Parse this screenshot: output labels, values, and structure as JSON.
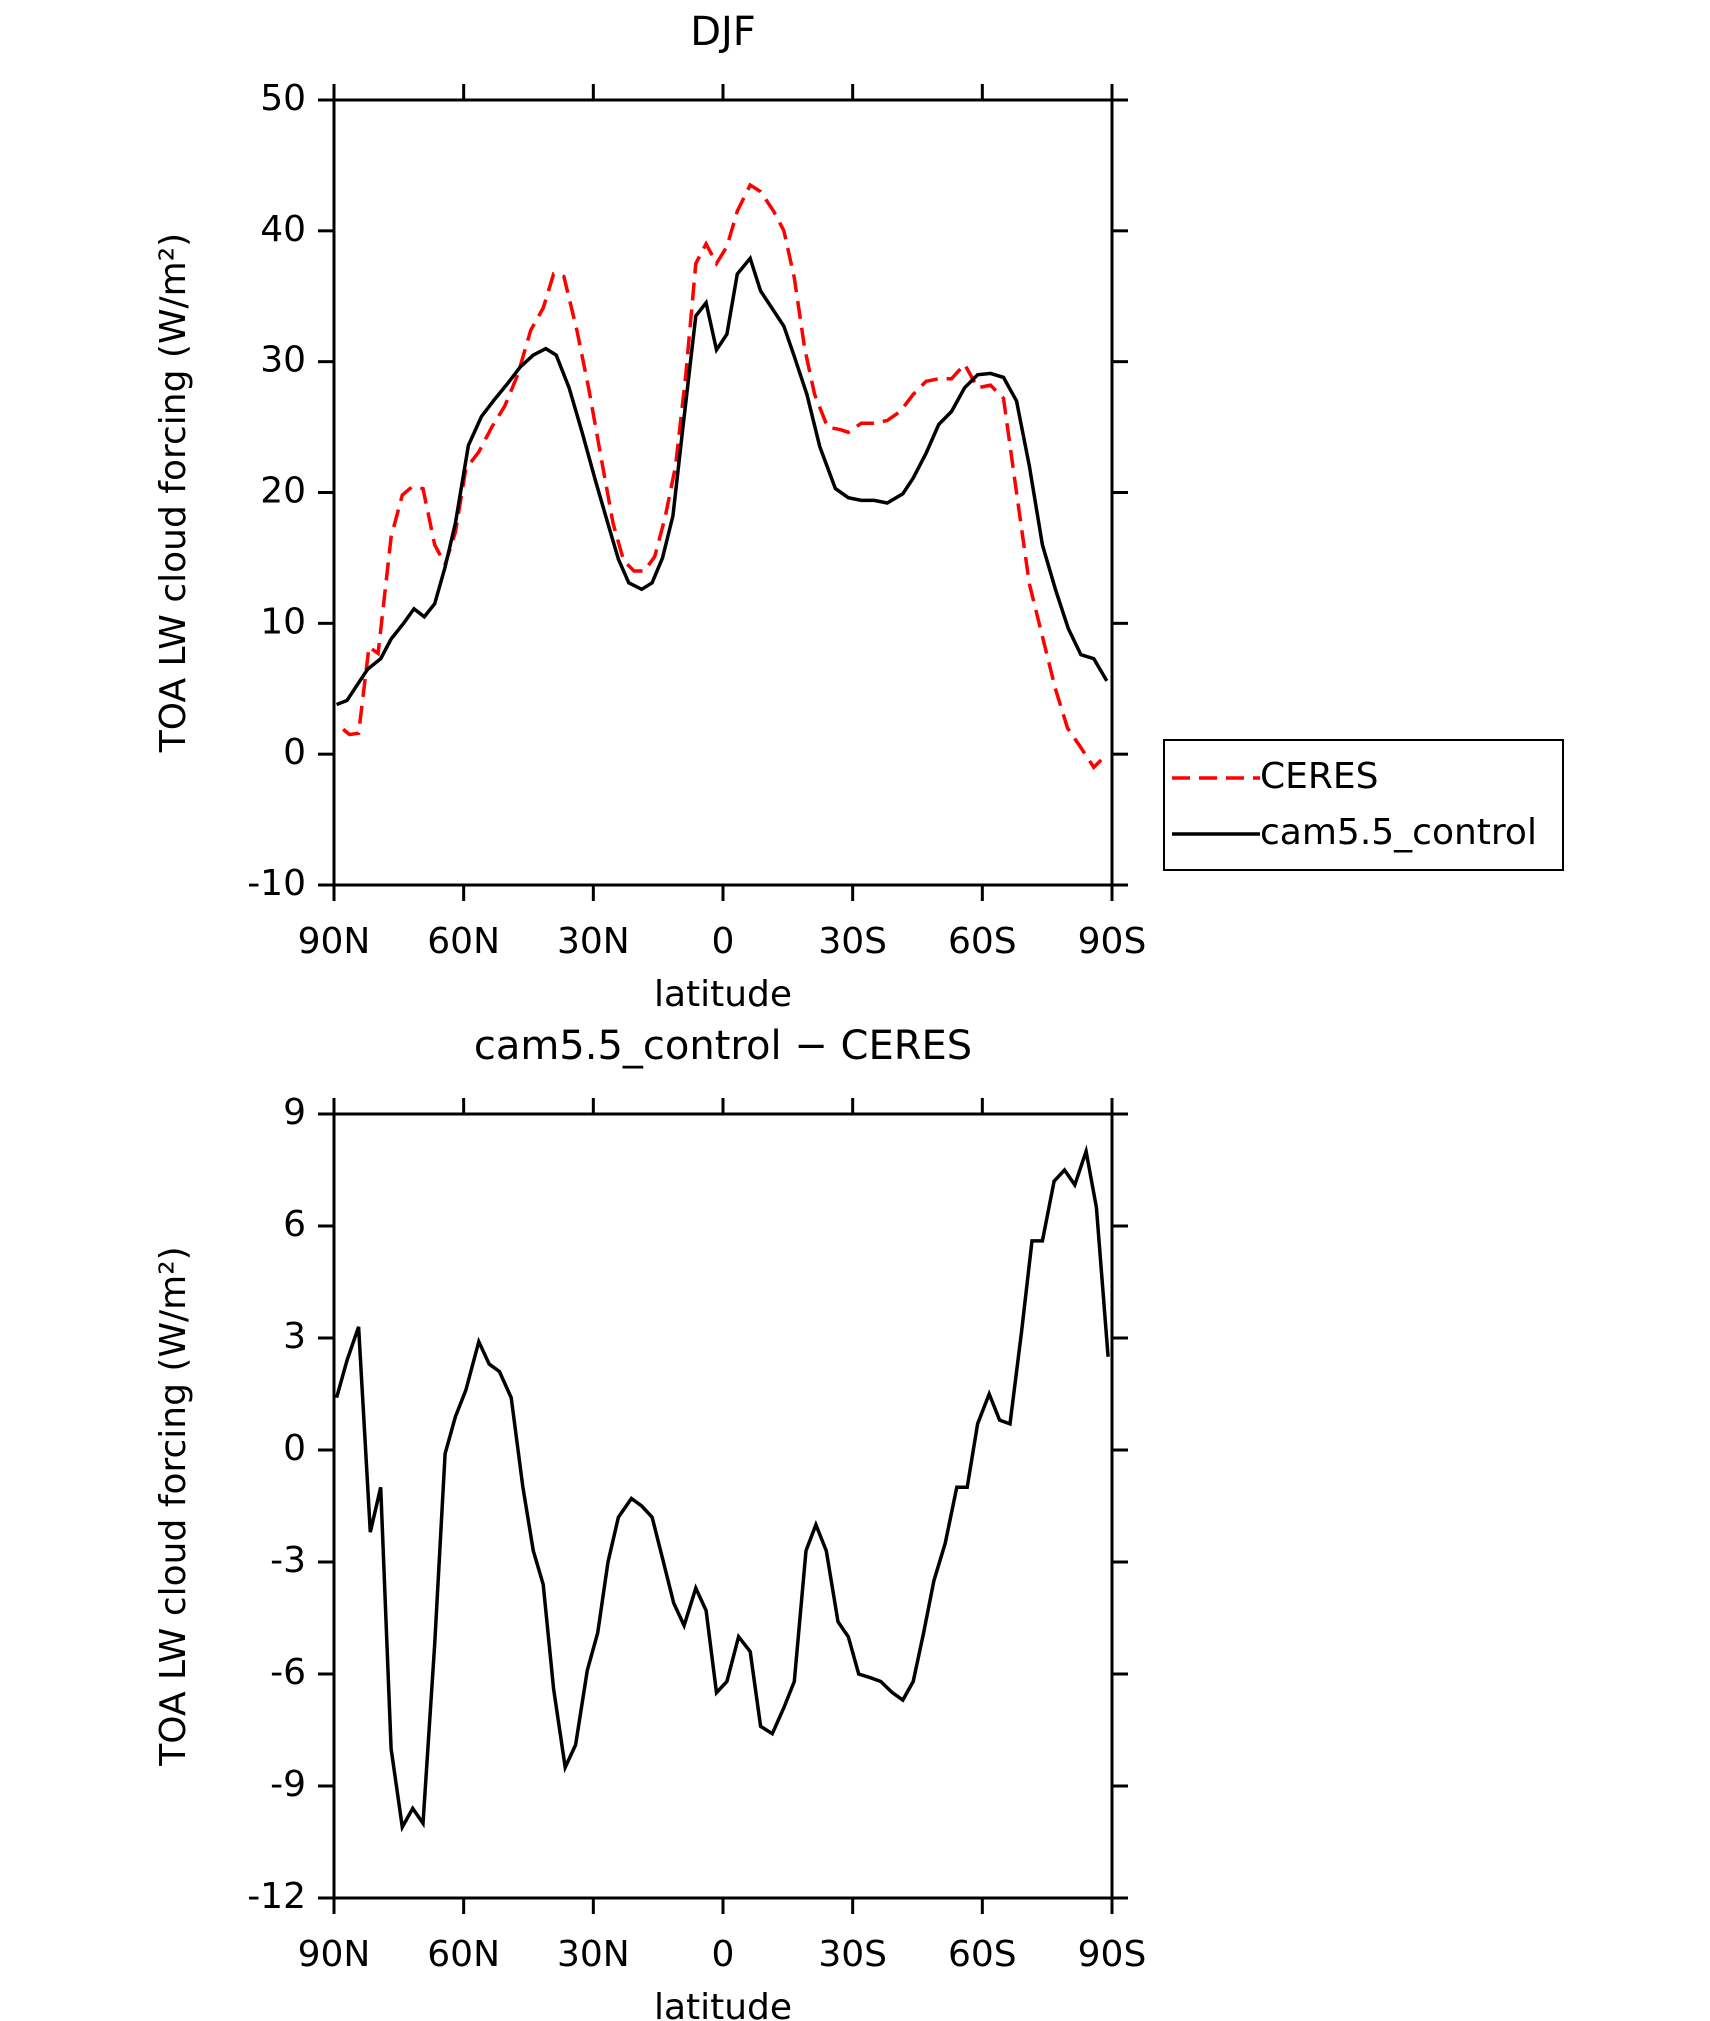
{
  "chart_data": [
    {
      "type": "line",
      "title": "DJF",
      "xlabel": "latitude",
      "ylabel": "TOA LW cloud forcing (W/m²)",
      "xlim": [
        90,
        -90
      ],
      "ylim": [
        -10,
        50
      ],
      "xticks": [
        {
          "value": 90,
          "label": "90N"
        },
        {
          "value": 60,
          "label": "60N"
        },
        {
          "value": 30,
          "label": "30N"
        },
        0,
        {
          "value": -30,
          "label": "30S"
        },
        {
          "value": -60,
          "label": "60S"
        },
        {
          "value": -90,
          "label": "90S"
        }
      ],
      "yticks": [
        50,
        40,
        30,
        20,
        10,
        0,
        -10
      ],
      "legend": "right",
      "series": [
        {
          "name": "CERES",
          "color": "#ff0000",
          "dash": true,
          "x": [
            87.9,
            86.4,
            84.3,
            81.9,
            79.8,
            76.8,
            74.2,
            72.1,
            69.4,
            66.7,
            64.3,
            61.9,
            59.5,
            56.5,
            53.5,
            50.5,
            47.5,
            44.5,
            41.6,
            39.2,
            36.8,
            33.8,
            31.1,
            28.1,
            25.4,
            23.0,
            20.6,
            18.2,
            15.8,
            13.4,
            11.0,
            8.6,
            6.3,
            3.9,
            1.5,
            -0.9,
            -3.3,
            -6.3,
            -8.7,
            -11.7,
            -14.1,
            -16.5,
            -18.9,
            -21.2,
            -24.2,
            -27.2,
            -29.0,
            -32.0,
            -35.0,
            -38.0,
            -41.0,
            -44.0,
            -47.0,
            -49.9,
            -52.9,
            -55.9,
            -58.9,
            -61.9,
            -64.9,
            -67.9,
            -70.9,
            -73.9,
            -76.9,
            -79.7,
            -82.8,
            -85.8,
            -88.8
          ],
          "values": [
            1.9,
            1.5,
            1.6,
            8.2,
            7.7,
            16.6,
            19.8,
            20.4,
            20.3,
            16,
            14.5,
            17,
            21.8,
            23.1,
            25,
            26.6,
            29,
            32.4,
            34.1,
            36.7,
            36.5,
            32.4,
            28,
            22.5,
            17.6,
            14.8,
            14,
            14,
            15.1,
            18.1,
            22,
            29,
            37.5,
            39,
            37.5,
            38.8,
            41.5,
            43.5,
            43,
            41.5,
            40,
            36.4,
            31,
            27.5,
            25,
            24.8,
            24.6,
            25.3,
            25.3,
            25.5,
            26.2,
            27.5,
            28.5,
            28.7,
            28.7,
            29.8,
            28,
            28.2,
            27.2,
            20,
            13,
            9,
            5,
            2,
            0.5,
            -1,
            0
          ]
        },
        {
          "name": "cam5.5_control",
          "color": "#000000",
          "dash": false,
          "x": [
            89.4,
            87.0,
            84.6,
            82.2,
            79.2,
            76.8,
            73.9,
            71.5,
            69.1,
            66.7,
            64.3,
            61.9,
            58.9,
            55.9,
            52.9,
            49.9,
            46.9,
            43.9,
            41.0,
            38.6,
            35.6,
            32.6,
            29.6,
            26.6,
            24.2,
            21.8,
            18.8,
            16.4,
            14.0,
            11.6,
            9.3,
            6.3,
            3.9,
            1.5,
            -0.9,
            -3.3,
            -6.3,
            -8.7,
            -11.7,
            -14.1,
            -16.5,
            -19.4,
            -22.4,
            -26.0,
            -29.0,
            -32.0,
            -35.0,
            -38.0,
            -41.6,
            -44.0,
            -47.0,
            -49.9,
            -52.9,
            -55.9,
            -58.9,
            -61.9,
            -64.9,
            -67.9,
            -70.9,
            -73.9,
            -76.9,
            -79.9,
            -82.8,
            -85.8,
            -88.8
          ],
          "values": [
            3.8,
            4.1,
            5.3,
            6.5,
            7.3,
            8.8,
            10,
            11.1,
            10.5,
            11.5,
            14.3,
            17.7,
            23.6,
            25.8,
            27.1,
            28.3,
            29.6,
            30.5,
            31,
            30.5,
            28,
            24.6,
            21,
            17.6,
            14.9,
            13.1,
            12.6,
            13.1,
            15,
            18.2,
            24.9,
            33.5,
            34.5,
            30.9,
            32.1,
            36.7,
            37.9,
            35.4,
            33.9,
            32.7,
            30.4,
            27.5,
            23.5,
            20.3,
            19.6,
            19.4,
            19.4,
            19.2,
            19.9,
            21.1,
            23,
            25.2,
            26.2,
            28,
            29,
            29.1,
            28.8,
            27,
            22,
            16,
            12.6,
            9.6,
            7.6,
            7.3,
            5.6
          ]
        }
      ]
    },
    {
      "type": "line",
      "title": "cam5.5_control − CERES",
      "xlabel": "latitude",
      "ylabel": "TOA LW cloud forcing (W/m²)",
      "xlim": [
        90,
        -90
      ],
      "ylim": [
        -12,
        9
      ],
      "xticks": [
        {
          "value": 90,
          "label": "90N"
        },
        {
          "value": 60,
          "label": "60N"
        },
        {
          "value": 30,
          "label": "30N"
        },
        0,
        {
          "value": -30,
          "label": "30S"
        },
        {
          "value": -60,
          "label": "60S"
        },
        {
          "value": -90,
          "label": "90S"
        }
      ],
      "yticks": [
        9,
        6,
        3,
        0,
        -3,
        -6,
        -9,
        -12
      ],
      "series": [
        {
          "color": "#000000",
          "dash": false,
          "x": [
            89.4,
            87.0,
            84.3,
            81.6,
            79.2,
            76.8,
            74.2,
            71.8,
            69.4,
            66.7,
            64.3,
            61.9,
            59.5,
            56.5,
            54.1,
            51.7,
            49.0,
            46.3,
            43.9,
            41.6,
            39.2,
            36.5,
            34.1,
            31.4,
            29.0,
            26.6,
            24.2,
            21.2,
            18.8,
            16.4,
            14.0,
            11.4,
            9.0,
            6.3,
            3.9,
            1.5,
            -0.9,
            -3.6,
            -6.3,
            -8.7,
            -11.4,
            -14.1,
            -16.5,
            -19.2,
            -21.5,
            -23.9,
            -26.6,
            -29.0,
            -31.4,
            -34.1,
            -36.5,
            -39.2,
            -41.6,
            -44.0,
            -46.4,
            -48.8,
            -51.4,
            -54.1,
            -56.5,
            -58.9,
            -61.6,
            -64.0,
            -66.4,
            -69.1,
            -71.5,
            -73.9,
            -76.6,
            -79.0,
            -81.4,
            -84.0,
            -86.4,
            -89.1
          ],
          "values": [
            1.4,
            2.4,
            3.3,
            -2.2,
            -1.0,
            -8.0,
            -10.1,
            -9.6,
            -10.0,
            -5.2,
            -0.1,
            0.9,
            1.6,
            2.9,
            2.3,
            2.1,
            1.4,
            -1.0,
            -2.7,
            -3.6,
            -6.4,
            -8.5,
            -7.9,
            -5.9,
            -4.9,
            -3.0,
            -1.8,
            -1.3,
            -1.5,
            -1.8,
            -2.9,
            -4.1,
            -4.7,
            -3.7,
            -4.3,
            -6.5,
            -6.2,
            -5.0,
            -5.4,
            -7.4,
            -7.6,
            -6.9,
            -6.2,
            -2.7,
            -2.0,
            -2.7,
            -4.6,
            -5.0,
            -6.0,
            -6.1,
            -6.2,
            -6.5,
            -6.7,
            -6.2,
            -4.9,
            -3.5,
            -2.5,
            -1.0,
            -1.0,
            0.7,
            1.5,
            0.8,
            0.7,
            3.2,
            5.6,
            5.6,
            7.2,
            7.5,
            7.1,
            8.0,
            6.5,
            2.5
          ]
        }
      ]
    }
  ]
}
